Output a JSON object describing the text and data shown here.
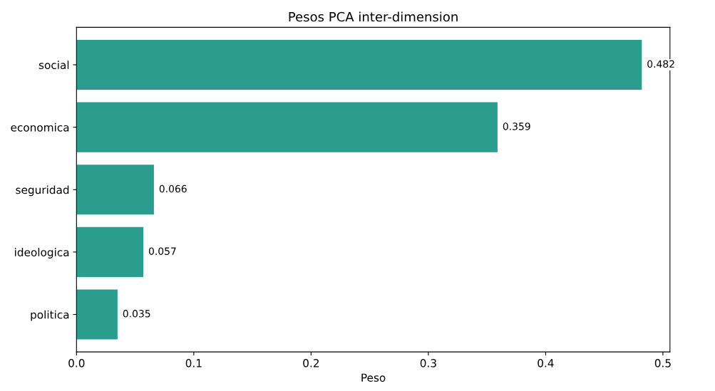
{
  "chart_data": {
    "type": "bar",
    "orientation": "horizontal",
    "title": "Pesos PCA inter-dimension",
    "xlabel": "Peso",
    "categories": [
      "social",
      "economica",
      "seguridad",
      "ideologica",
      "politica"
    ],
    "values": [
      0.482,
      0.359,
      0.066,
      0.057,
      0.035
    ],
    "color": "#2a9d8f",
    "xlim": [
      0,
      0.506
    ],
    "xticks": [
      {
        "value": 0,
        "label": "0.0"
      },
      0.1,
      0.2,
      0.3,
      0.4,
      0.5
    ],
    "data_labels": true,
    "grid": false
  }
}
